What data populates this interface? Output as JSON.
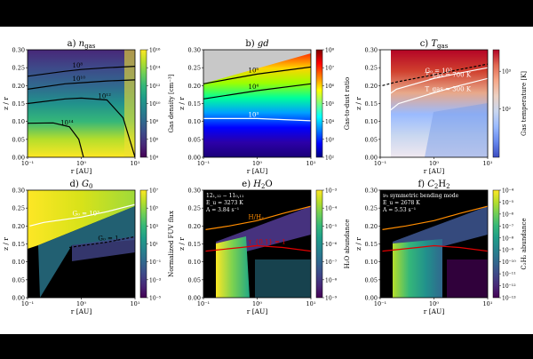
{
  "figure": {
    "panels": [
      {
        "id": "a",
        "title": "a) n_gas",
        "title_prefix": "a)",
        "title_main": "n",
        "title_sub": "gas",
        "colorbar_label": "Gas density [cm⁻³]",
        "colorbar_ticks": [
          "10⁴",
          "10⁶",
          "10⁸",
          "10¹⁰",
          "10¹²",
          "10¹⁴",
          "10¹⁶"
        ],
        "colormap": "viridis",
        "contour_labels": [
          "10⁸",
          "10¹⁰",
          "10¹²",
          "10¹⁴"
        ]
      },
      {
        "id": "b",
        "title": "b) gd",
        "title_prefix": "b)",
        "title_main": "gd",
        "title_sub": "",
        "colorbar_label": "Gas-to-dust ratio",
        "colorbar_ticks": [
          "10²",
          "10³",
          "10⁴",
          "10⁵",
          "10⁶",
          "10⁷",
          "10⁸"
        ],
        "colormap": "jet",
        "contour_labels": [
          "10⁵",
          "10⁴",
          "10³"
        ]
      },
      {
        "id": "c",
        "title": "c) T_gas",
        "title_prefix": "c)",
        "title_main": "T",
        "title_sub": "gas",
        "colorbar_label": "Gas temperature [K]",
        "colorbar_ticks": [
          "10²",
          "10³"
        ],
        "colormap": "coolwarm",
        "contour_labels": [
          "T_gas = 700 K",
          "T_gas = 300 K",
          "G₀ = 10³"
        ]
      },
      {
        "id": "d",
        "title": "d) G_0",
        "title_prefix": "d)",
        "title_main": "G",
        "title_sub": "0",
        "colorbar_label": "Normalized FUV flux",
        "colorbar_ticks": [
          "10⁻⁵",
          "10⁻³",
          "10⁻¹",
          "10¹",
          "10³",
          "10⁵",
          "10⁷"
        ],
        "colormap": "viridis",
        "contour_labels": [
          "G₀ = 10³",
          "G₀ = 1"
        ]
      },
      {
        "id": "e",
        "title": "e) H2O",
        "title_prefix": "e)",
        "title_main": "H",
        "title_sub": "2",
        "title_tail": "O",
        "colorbar_label": "H₂O abundance",
        "colorbar_ticks": [
          "10⁻⁹",
          "10⁻⁸",
          "10⁻⁷",
          "10⁻⁶",
          "10⁻⁵",
          "10⁻⁴",
          "10⁻³"
        ],
        "colormap": "viridis",
        "contour_labels": [
          "H/H₂",
          "τ_{0.1} = 1"
        ],
        "annotation": [
          "12₁,₁₂ − 11₀,₁₁",
          "E_u = 3273 K",
          "A = 3.84 s⁻¹"
        ]
      },
      {
        "id": "f",
        "title": "f) C2H2",
        "title_prefix": "f)",
        "title_main": "C",
        "title_sub": "2",
        "title_tail": "H",
        "title_sub2": "2",
        "colorbar_label": "C₂H₂ abundance",
        "colorbar_ticks": [
          "10⁻¹³",
          "10⁻¹²",
          "10⁻¹¹",
          "10⁻¹⁰",
          "10⁻⁹",
          "10⁻⁸",
          "10⁻⁷",
          "10⁻⁶",
          "10⁻⁵",
          "10⁻⁴"
        ],
        "colormap": "viridis",
        "annotation": [
          "ν₅ symmetric bending mode",
          "E_u = 2678 K",
          "A = 5.53 s⁻¹"
        ]
      }
    ]
  },
  "chart_data": [
    {
      "type": "heatmap",
      "panel": "a",
      "title": "a) n_gas",
      "xlabel": "r [AU]",
      "ylabel": "z / r",
      "xscale": "log",
      "xlim": [
        0.1,
        10
      ],
      "ylim": [
        0.0,
        0.3
      ],
      "x_ticks": [
        "10⁻¹",
        "10⁰",
        "10¹"
      ],
      "y_ticks": [
        "0.00",
        "0.05",
        "0.10",
        "0.15",
        "0.20",
        "0.25",
        "0.30"
      ],
      "colorbar": {
        "label": "Gas density [cm⁻³]",
        "scale": "log",
        "range": [
          10000.0,
          1e+16
        ]
      },
      "contours": [
        {
          "label": "10⁸",
          "r": [
            0.1,
            0.5,
            1,
            3,
            10
          ],
          "z_over_r": [
            0.226,
            0.24,
            0.245,
            0.25,
            0.254
          ]
        },
        {
          "label": "10¹⁰",
          "r": [
            0.1,
            0.5,
            1,
            3,
            10
          ],
          "z_over_r": [
            0.19,
            0.205,
            0.208,
            0.213,
            0.216
          ]
        },
        {
          "label": "10¹²",
          "r": [
            0.1,
            0.5,
            1,
            3,
            6,
            10
          ],
          "z_over_r": [
            0.15,
            0.163,
            0.165,
            0.16,
            0.11,
            0.0
          ]
        },
        {
          "label": "10¹⁴",
          "r": [
            0.1,
            0.3,
            0.6,
            0.9,
            1.1
          ],
          "z_over_r": [
            0.095,
            0.096,
            0.085,
            0.05,
            0.0
          ]
        }
      ]
    },
    {
      "type": "heatmap",
      "panel": "b",
      "title": "b) gd",
      "xlabel": "r [AU]",
      "ylabel": "z / r",
      "xscale": "log",
      "xlim": [
        0.1,
        10
      ],
      "ylim": [
        0.0,
        0.3
      ],
      "x_ticks": [
        "10⁻¹",
        "10⁰",
        "10¹"
      ],
      "y_ticks": [
        "0.00",
        "0.05",
        "0.10",
        "0.15",
        "0.20",
        "0.25",
        "0.30"
      ],
      "colorbar": {
        "label": "Gas-to-dust ratio",
        "scale": "log",
        "range": [
          100.0,
          100000000.0
        ]
      },
      "contours": [
        {
          "label": "10⁵",
          "r": [
            0.1,
            1,
            10
          ],
          "z_over_r": [
            0.205,
            0.232,
            0.252
          ]
        },
        {
          "label": "10⁴",
          "r": [
            0.1,
            1,
            10
          ],
          "z_over_r": [
            0.163,
            0.186,
            0.205
          ]
        },
        {
          "label": "10³",
          "r": [
            0.1,
            1,
            10
          ],
          "z_over_r": [
            0.108,
            0.108,
            0.102
          ]
        }
      ]
    },
    {
      "type": "heatmap",
      "panel": "c",
      "title": "c) T_gas",
      "xlabel": "r [AU]",
      "ylabel": "z / r",
      "xscale": "log",
      "xlim": [
        0.1,
        10
      ],
      "ylim": [
        0.0,
        0.3
      ],
      "x_ticks": [
        "10⁻¹",
        "10⁰",
        "10¹"
      ],
      "y_ticks": [
        "0.00",
        "0.05",
        "0.10",
        "0.15",
        "0.20",
        "0.25",
        "0.30"
      ],
      "colorbar": {
        "label": "Gas temperature [K]",
        "scale": "log",
        "range": [
          20,
          5000
        ]
      },
      "contours": [
        {
          "label": "T_gas = 700 K",
          "r": [
            0.13,
            0.2,
            1,
            3,
            10
          ],
          "z_over_r": [
            0.17,
            0.19,
            0.22,
            0.235,
            0.25
          ]
        },
        {
          "label": "T_gas = 300 K",
          "r": [
            0.15,
            0.22,
            1,
            3,
            10
          ],
          "z_over_r": [
            0.13,
            0.15,
            0.18,
            0.2,
            0.22
          ]
        },
        {
          "label": "G₀ = 10³",
          "r": [
            0.11,
            0.2,
            1,
            3,
            10
          ],
          "z_over_r": [
            0.2,
            0.21,
            0.23,
            0.245,
            0.26
          ]
        }
      ]
    },
    {
      "type": "heatmap",
      "panel": "d",
      "title": "d) G_0",
      "xlabel": "r [AU]",
      "ylabel": "z / r",
      "xscale": "log",
      "xlim": [
        0.1,
        10
      ],
      "ylim": [
        0.0,
        0.3
      ],
      "x_ticks": [
        "10⁻¹",
        "10⁰",
        "10¹"
      ],
      "y_ticks": [
        "0.00",
        "0.05",
        "0.10",
        "0.15",
        "0.20",
        "0.25",
        "0.30"
      ],
      "colorbar": {
        "label": "Normalized FUV flux",
        "scale": "log",
        "range": [
          1e-05,
          10000000.0
        ]
      },
      "contours": [
        {
          "label": "G₀ = 10³",
          "r": [
            0.11,
            0.2,
            1,
            3,
            10
          ],
          "z_over_r": [
            0.2,
            0.21,
            0.225,
            0.24,
            0.26
          ]
        },
        {
          "label": "G₀ = 1",
          "r": [
            0.6,
            1,
            3,
            10
          ],
          "z_over_r": [
            0.14,
            0.145,
            0.155,
            0.17
          ]
        }
      ]
    },
    {
      "type": "heatmap",
      "panel": "e",
      "title": "e) H2O",
      "xlabel": "r [AU]",
      "ylabel": "z / r",
      "xscale": "log",
      "xlim": [
        0.1,
        10
      ],
      "ylim": [
        0.0,
        0.3
      ],
      "x_ticks": [
        "10⁻¹",
        "10⁰",
        "10¹"
      ],
      "y_ticks": [
        "0.00",
        "0.05",
        "0.10",
        "0.15",
        "0.20",
        "0.25",
        "0.30"
      ],
      "colorbar": {
        "label": "H₂O abundance",
        "scale": "log",
        "range": [
          1e-09,
          0.001
        ]
      },
      "contours": [
        {
          "label": "H/H₂",
          "r": [
            0.11,
            0.3,
            1,
            3,
            10
          ],
          "z_over_r": [
            0.19,
            0.2,
            0.215,
            0.235,
            0.255
          ]
        },
        {
          "label": "τ_{0.1} = 1",
          "r": [
            0.11,
            0.5,
            1,
            3,
            10
          ],
          "z_over_r": [
            0.13,
            0.14,
            0.145,
            0.14,
            0.13
          ]
        }
      ]
    },
    {
      "type": "heatmap",
      "panel": "f",
      "title": "f) C2H2",
      "xlabel": "r [AU]",
      "ylabel": "z / r",
      "xscale": "log",
      "xlim": [
        0.1,
        10
      ],
      "ylim": [
        0.0,
        0.3
      ],
      "x_ticks": [
        "10⁻¹",
        "10⁰",
        "10¹"
      ],
      "y_ticks": [
        "0.00",
        "0.05",
        "0.10",
        "0.15",
        "0.20",
        "0.25",
        "0.30"
      ],
      "colorbar": {
        "label": "C₂H₂ abundance",
        "scale": "log",
        "range": [
          1e-13,
          0.0001
        ]
      },
      "contours": [
        {
          "label": "",
          "r": [
            0.11,
            0.3,
            1,
            3,
            10
          ],
          "z_over_r": [
            0.19,
            0.2,
            0.215,
            0.235,
            0.255
          ]
        },
        {
          "label": "",
          "r": [
            0.11,
            0.5,
            1,
            3,
            10
          ],
          "z_over_r": [
            0.13,
            0.14,
            0.145,
            0.14,
            0.13
          ]
        }
      ]
    }
  ]
}
